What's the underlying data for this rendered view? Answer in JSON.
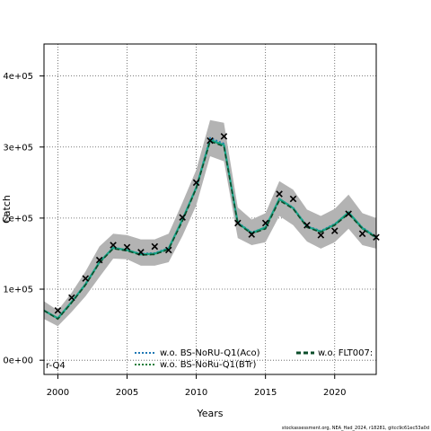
{
  "chart_data": {
    "type": "line",
    "xlabel": "Years",
    "ylabel": "Catch",
    "xlim": [
      1999,
      2023
    ],
    "ylim": [
      -20000,
      445000
    ],
    "x_ticks": [
      2000,
      2005,
      2010,
      2015,
      2020
    ],
    "x_tick_labels": [
      "2000",
      "2005",
      "2010",
      "2015",
      "2020"
    ],
    "y_ticks": [
      0,
      100000,
      200000,
      300000,
      400000
    ],
    "y_tick_labels": [
      "0e+00",
      "1e+05",
      "2e+05",
      "3e+05",
      "4e+05"
    ],
    "grid": true,
    "legend_placement": "bottom",
    "years": [
      1999,
      2000,
      2001,
      2002,
      2003,
      2004,
      2005,
      2006,
      2007,
      2008,
      2009,
      2010,
      2011,
      2012,
      2013,
      2014,
      2015,
      2016,
      2017,
      2018,
      2019,
      2020,
      2021,
      2022,
      2023
    ],
    "observed_catch": [
      {
        "x": 2000,
        "y": 70000
      },
      {
        "x": 2001,
        "y": 88000
      },
      {
        "x": 2002,
        "y": 115000
      },
      {
        "x": 2003,
        "y": 141000
      },
      {
        "x": 2004,
        "y": 162000
      },
      {
        "x": 2005,
        "y": 159000
      },
      {
        "x": 2006,
        "y": 152000
      },
      {
        "x": 2007,
        "y": 160000
      },
      {
        "x": 2008,
        "y": 155000
      },
      {
        "x": 2009,
        "y": 201000
      },
      {
        "x": 2010,
        "y": 250000
      },
      {
        "x": 2011,
        "y": 309000
      },
      {
        "x": 2012,
        "y": 315000
      },
      {
        "x": 2013,
        "y": 193000
      },
      {
        "x": 2014,
        "y": 177000
      },
      {
        "x": 2015,
        "y": 193000
      },
      {
        "x": 2016,
        "y": 234000
      },
      {
        "x": 2017,
        "y": 227000
      },
      {
        "x": 2018,
        "y": 190000
      },
      {
        "x": 2019,
        "y": 176000
      },
      {
        "x": 2020,
        "y": 182000
      },
      {
        "x": 2021,
        "y": 206000
      },
      {
        "x": 2022,
        "y": 178000
      },
      {
        "x": 2023,
        "y": 173000
      }
    ],
    "confidence_band": {
      "upper": [
        83000,
        70000,
        95000,
        125000,
        160000,
        178000,
        176000,
        170000,
        170000,
        178000,
        222000,
        268000,
        338000,
        334000,
        215000,
        198000,
        207000,
        252000,
        240000,
        212000,
        203000,
        213000,
        233000,
        207000,
        200000
      ],
      "lower": [
        58000,
        48000,
        68000,
        90000,
        117000,
        143000,
        142000,
        133000,
        133000,
        138000,
        175000,
        218000,
        287000,
        280000,
        172000,
        162000,
        166000,
        203000,
        190000,
        167000,
        157000,
        166000,
        185000,
        162000,
        157000
      ]
    },
    "series": [
      {
        "name": "w.o. BS-NoRU-Q1(Aco)",
        "color": "#1f78b4",
        "dash": "dotted",
        "values": [
          70000,
          59000,
          82000,
          108000,
          138000,
          159000,
          155000,
          150000,
          151000,
          158000,
          198000,
          244000,
          313000,
          305000,
          194000,
          180000,
          187000,
          227000,
          215000,
          189000,
          182000,
          192000,
          208000,
          187000,
          174000
        ]
      },
      {
        "name": "w.o. BS-NoRu-Q1(BTr)",
        "color": "#1b7d3a",
        "dash": "dotted",
        "values": [
          70000,
          58000,
          81000,
          106000,
          137000,
          158000,
          154000,
          148000,
          149000,
          156000,
          197000,
          242000,
          309000,
          302000,
          193000,
          178000,
          186000,
          226000,
          214000,
          188000,
          181000,
          190000,
          207000,
          185000,
          173000
        ]
      },
      {
        "name": "r-Q4",
        "color": "#17a589",
        "dash": "solid",
        "values": [
          70000,
          59000,
          82000,
          107000,
          138000,
          158000,
          155000,
          149000,
          150000,
          157000,
          198000,
          243000,
          310000,
          303000,
          193000,
          179000,
          187000,
          227000,
          214000,
          188000,
          181000,
          191000,
          208000,
          186000,
          173000
        ]
      },
      {
        "name": "w.o. FLT007:",
        "color": "#0b4d2a",
        "dash": "dashed",
        "values": [
          70000,
          58000,
          81000,
          106000,
          137000,
          157000,
          154000,
          148000,
          149000,
          156000,
          196000,
          242000,
          308000,
          301000,
          192000,
          178000,
          185000,
          225000,
          213000,
          187000,
          180000,
          190000,
          206000,
          185000,
          172000
        ]
      }
    ],
    "footer": "stockassessment.org, NEA_Had_2024, r18281, gitcc9c61ec53a0d"
  }
}
